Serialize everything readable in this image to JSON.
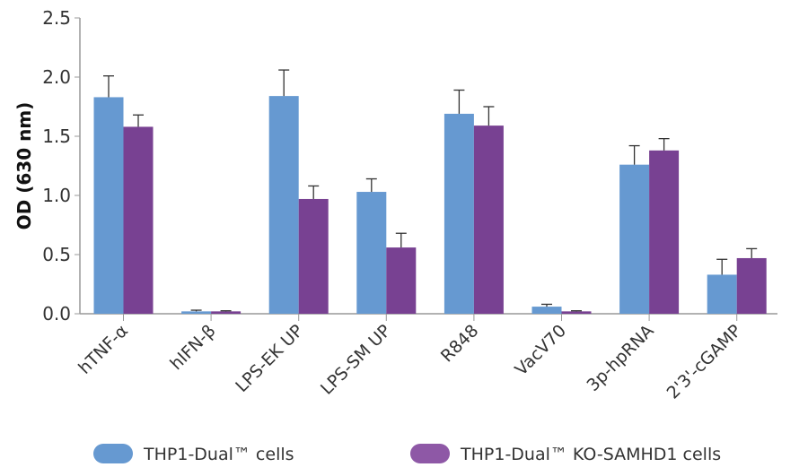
{
  "chart_data": {
    "type": "bar",
    "title": "",
    "xlabel": "",
    "ylabel": "OD (630 nm)",
    "ylim": [
      0,
      2.5
    ],
    "yticks": [
      "0.0",
      "0.5",
      "1.0",
      "1.5",
      "2.0",
      "2.5"
    ],
    "grid": false,
    "legend_placement": "bottom",
    "categories": [
      "hTNF-α",
      "hIFN-β",
      "LPS-EK UP",
      "LPS-SM UP",
      "R848",
      "VacV70",
      "3p-hpRNA",
      "2'3'-cGAMP"
    ],
    "series": [
      {
        "name": "THP1-Dual™ cells",
        "color": "#6699d1",
        "values": [
          1.83,
          0.02,
          1.84,
          1.03,
          1.69,
          0.06,
          1.26,
          0.33
        ],
        "error": [
          0.18,
          0.01,
          0.22,
          0.11,
          0.2,
          0.02,
          0.16,
          0.13
        ]
      },
      {
        "name": "THP1-Dual™ KO-SAMHD1 cells",
        "color": "#784192",
        "values": [
          1.58,
          0.02,
          0.97,
          0.56,
          1.59,
          0.02,
          1.38,
          0.47
        ],
        "error": [
          0.1,
          0.005,
          0.11,
          0.12,
          0.16,
          0.005,
          0.1,
          0.08
        ]
      }
    ]
  }
}
